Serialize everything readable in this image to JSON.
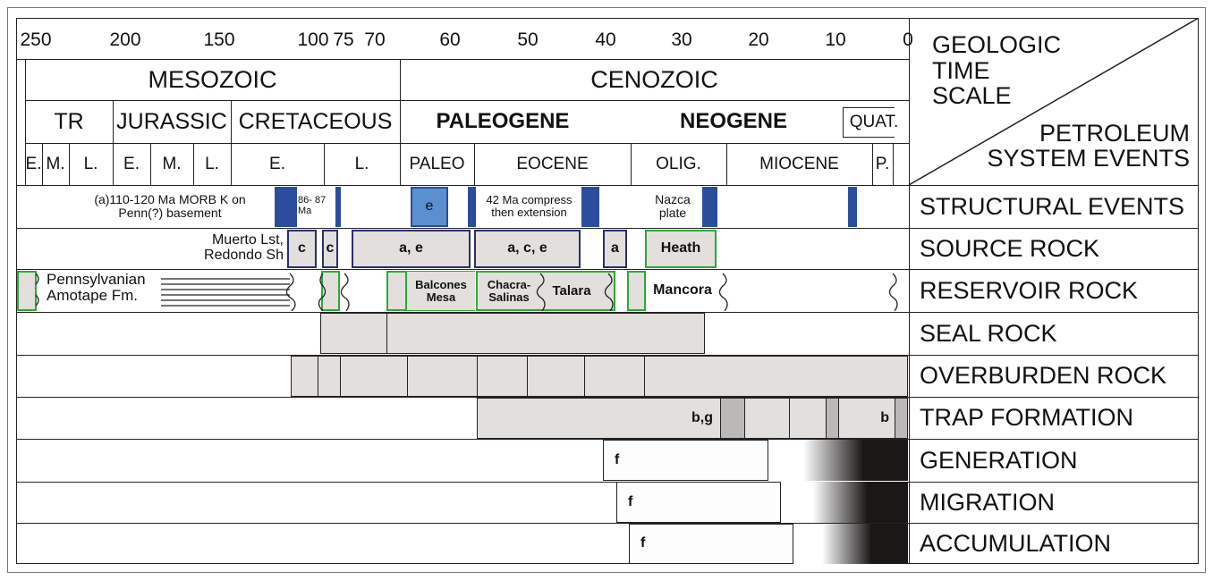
{
  "time_scale": {
    "ticks": [
      "250",
      "200",
      "150",
      "100",
      "75",
      "70",
      "60",
      "50",
      "40",
      "30",
      "20",
      "10",
      "0"
    ],
    "eras": [
      "MESOZOIC",
      "CENOZOIC"
    ],
    "periods": [
      "TR",
      "JURASSIC",
      "CRETACEOUS",
      "PALEOGENE",
      "NEOGENE",
      "QUAT."
    ],
    "epochs": [
      "E.",
      "M.",
      "L.",
      "E.",
      "M.",
      "L.",
      "E.",
      "L.",
      "PALEO",
      "EOCENE",
      "OLIG.",
      "MIOCENE",
      "P."
    ]
  },
  "header": {
    "title": "GEOLOGIC TIME SCALE",
    "subtitle": "PETROLEUM SYSTEM EVENTS"
  },
  "rows": [
    "STRUCTURAL EVENTS",
    "SOURCE ROCK",
    "RESERVOIR ROCK",
    "SEAL ROCK",
    "OVERBURDEN ROCK",
    "TRAP FORMATION",
    "GENERATION",
    "MIGRATION",
    "ACCUMULATION"
  ],
  "structural": {
    "morb": "(a)110-120 Ma MORB K on Penn(?) basement",
    "ma86": "86- 87 Ma",
    "e": "e",
    "compress": "42 Ma compress then extension",
    "nazca": "Nazca plate"
  },
  "source": {
    "label": "Muerto Lst, Redondo Sh",
    "c1": "c",
    "c2": "c",
    "ae": "a, e",
    "ace": "a, c, e",
    "a": "a",
    "heath": "Heath"
  },
  "reservoir": {
    "penn": "Pennsylvanian",
    "amotape": "Amotape Fm.",
    "balcones": "Balcones Mesa",
    "chacra": "Chacra- Salinas",
    "talara": "Talara",
    "mancora": "Mancora"
  },
  "trap": {
    "bg": "b,g",
    "b": "b"
  },
  "process": {
    "generation": "f",
    "migration": "f",
    "accumulation": "f"
  },
  "colors": {
    "dark_blue": "#2b4d9c",
    "light_blue": "#5a8fd0",
    "gray": "#e2dfdd",
    "green": "#2ea836",
    "navy": "#2b2e6e"
  }
}
